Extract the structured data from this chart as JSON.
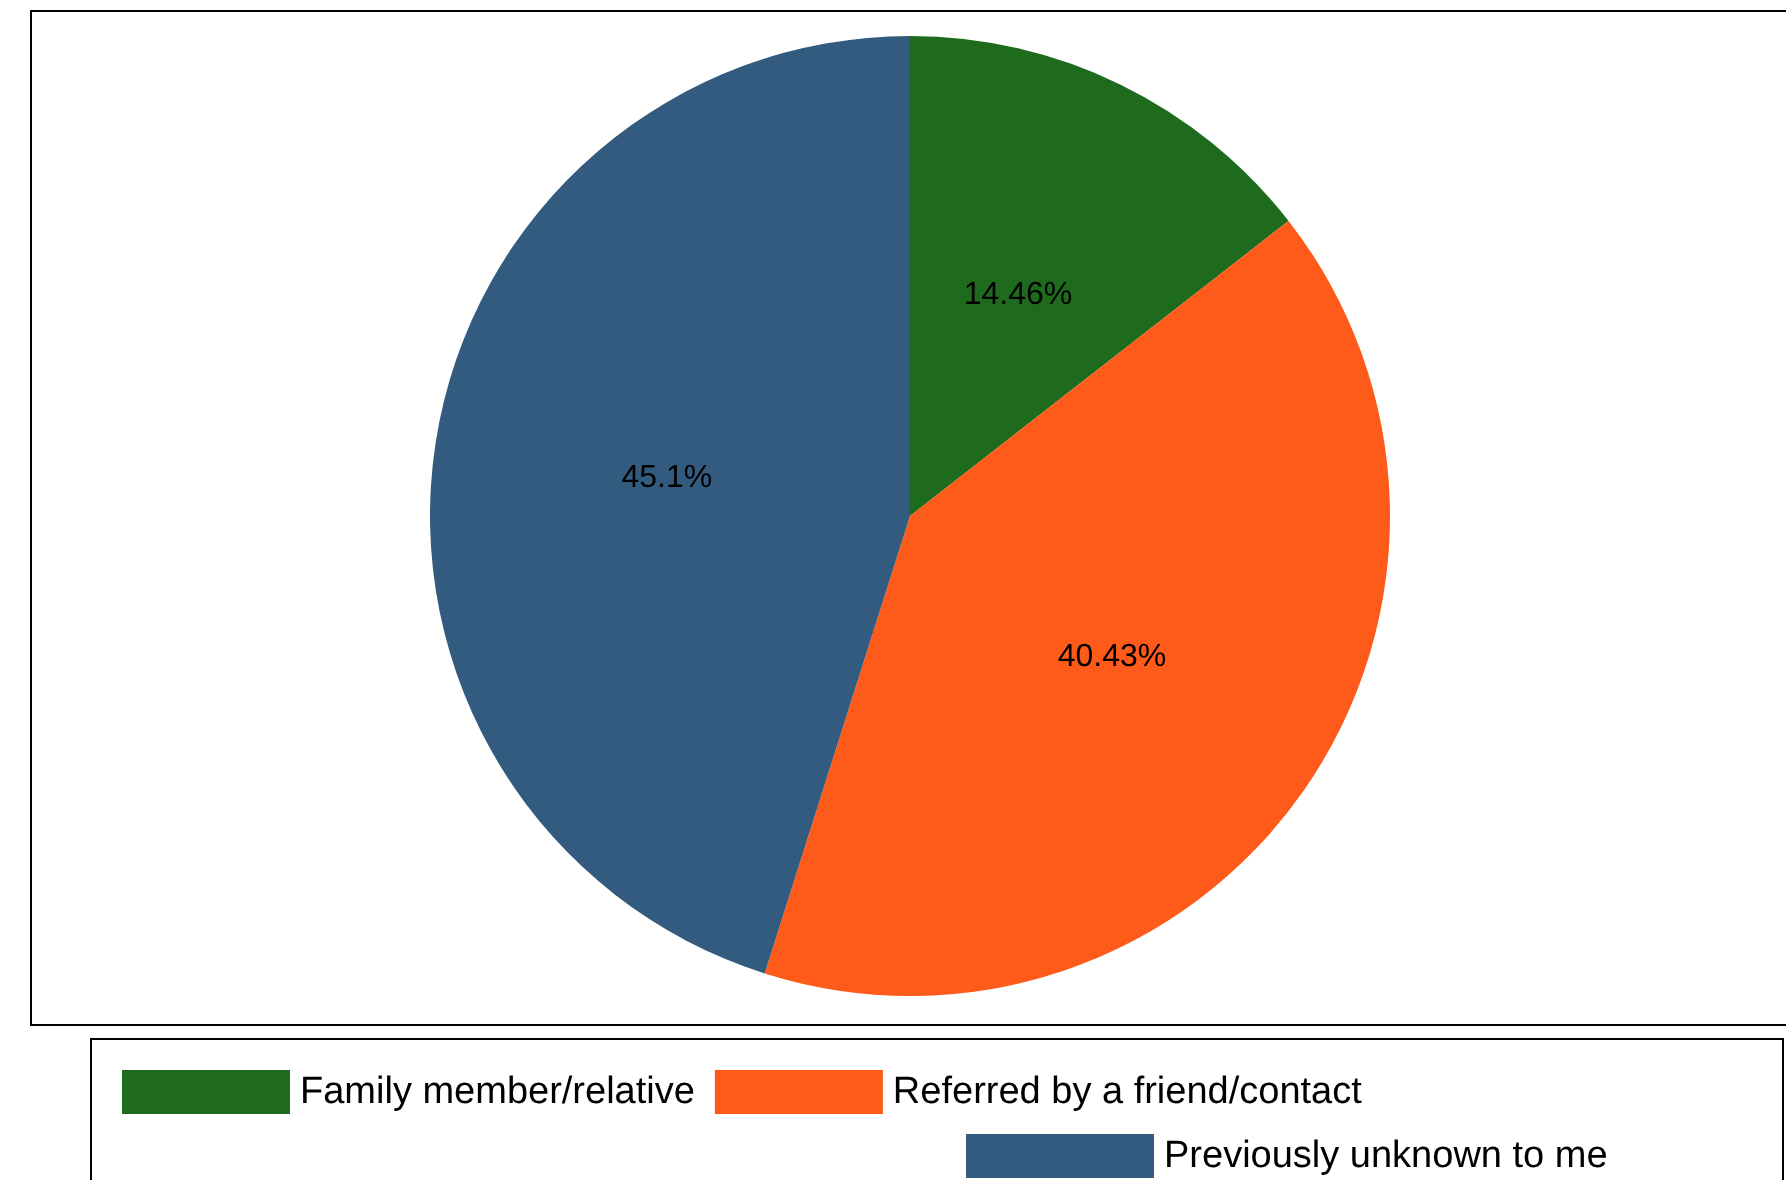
{
  "chart_data": {
    "type": "pie",
    "categories": [
      "Family member/relative",
      "Referred by a friend/contact",
      "Previously unknown to me"
    ],
    "values": [
      14.46,
      40.43,
      45.1
    ],
    "colors": [
      "#1e6b1e",
      "#fe5a1a",
      "#335a7f"
    ],
    "value_labels": [
      "14.46%",
      "40.43%",
      "45.1%"
    ],
    "legend": "bottom"
  }
}
